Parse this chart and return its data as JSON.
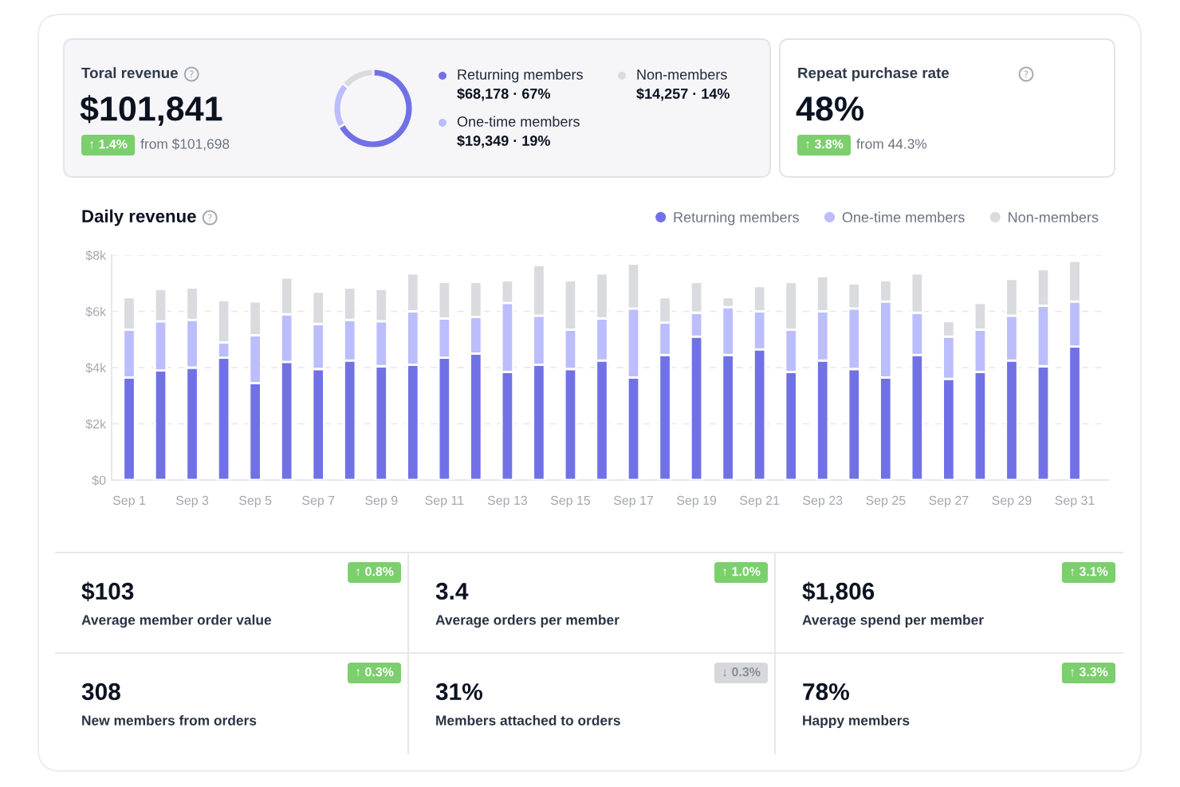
{
  "chart_data": [
    {
      "type": "donut",
      "title": "Toral revenue",
      "annotations": [
        "$101,841",
        "from $101,698",
        "↑ 1.4%"
      ],
      "categories": [
        "Returning members",
        "One-time members",
        "Non-members"
      ],
      "values": [
        68178,
        19349,
        14257
      ],
      "colors": [
        "#7171e6",
        "#bcbdfd",
        "#d9dbde"
      ],
      "value_labels": [
        "$68,178 · 67%",
        "$19,349 · 19%",
        "$14,257 · 14%"
      ],
      "legend": "right"
    },
    {
      "type": "other",
      "title": "Repeat purchase rate",
      "annotations": [
        "48%",
        "from 44.3%",
        "↑ 3.8%"
      ]
    },
    {
      "type": "bar",
      "title": "Daily revenue",
      "stacked": true,
      "categories": [
        "Sep 1",
        null,
        "Sep 3",
        null,
        "Sep 5",
        null,
        "Sep 7",
        null,
        "Sep 9",
        null,
        "Sep 11",
        null,
        "Sep 13",
        null,
        "Sep 15",
        null,
        "Sep 17",
        null,
        "Sep 19",
        null,
        "Sep 21",
        null,
        "Sep 23",
        null,
        "Sep 25",
        null,
        "Sep 27",
        null,
        "Sep 29",
        null,
        "Sep 31"
      ],
      "series": [
        {
          "name": "Returning members",
          "color": "#7171e6",
          "values": [
            3650,
            3900,
            4000,
            4350,
            3450,
            4200,
            3950,
            4250,
            4050,
            4100,
            4350,
            4500,
            3850,
            4100,
            3950,
            4250,
            3650,
            4450,
            5100,
            4450,
            4650,
            3850,
            4250,
            3950,
            3650,
            4450,
            3600,
            3850,
            4250,
            4050,
            4750
          ]
        },
        {
          "name": "One-time members",
          "color": "#bcbdfd",
          "values": [
            1700,
            1750,
            1700,
            550,
            1700,
            1700,
            1600,
            1450,
            1600,
            1900,
            1400,
            1300,
            2450,
            1750,
            1400,
            1500,
            2450,
            1150,
            850,
            1700,
            1350,
            1500,
            1750,
            2150,
            2700,
            1500,
            1500,
            1500,
            1600,
            2150,
            1600
          ]
        },
        {
          "name": "Non-members",
          "color": "#d9dbde",
          "values": [
            1150,
            1150,
            1150,
            1500,
            1200,
            1300,
            1150,
            1150,
            1150,
            1350,
            1300,
            1250,
            800,
            1800,
            1750,
            1600,
            1600,
            900,
            1100,
            350,
            900,
            1700,
            1250,
            900,
            750,
            1400,
            550,
            950,
            1300,
            1300,
            1450
          ]
        }
      ],
      "ylim": [
        0,
        8000
      ],
      "yticks": [
        {
          "value": 0,
          "label": "$0"
        },
        {
          "value": 2000,
          "label": "$2k"
        },
        {
          "value": 4000,
          "label": "$4k"
        },
        {
          "value": 6000,
          "label": "$6k"
        },
        {
          "value": 8000,
          "label": "$8k"
        }
      ],
      "grid": "y",
      "legend": "top right"
    },
    {
      "type": "other",
      "annotations": [
        "$103",
        "Average member order value",
        "↑ 0.8%",
        "3.4",
        "Average orders per member",
        "↑ 1.0%",
        "$1,806",
        "Average spend per member",
        "↑ 3.1%",
        "308",
        "New members from orders",
        "↑ 0.3%",
        "31%",
        "Members attached to orders",
        "↓ 0.3%",
        "78%",
        "Happy members",
        "↑ 3.3%"
      ],
      "colors": [
        "#7bcf6c",
        "#7bcf6c",
        "#7bcf6c",
        "#7bcf6c",
        "#d6d8db",
        "#7bcf6c"
      ]
    }
  ]
}
